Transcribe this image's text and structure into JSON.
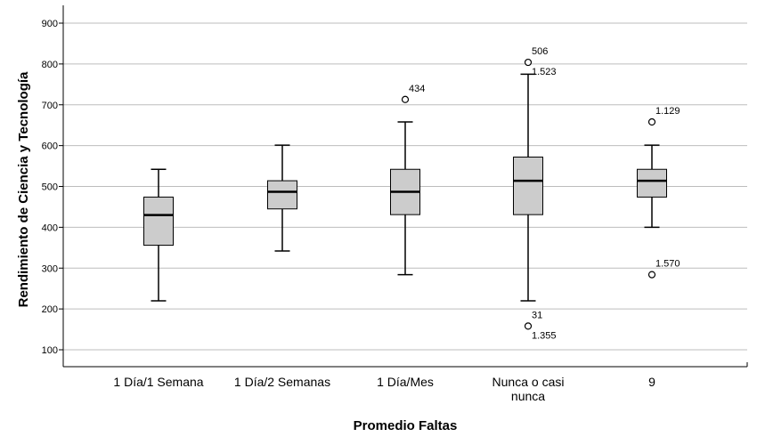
{
  "chart_data": {
    "type": "boxplot",
    "xlabel": "Promedio Faltas",
    "ylabel": "Rendimiento de Ciencia y Tecnología",
    "ylim": [
      50,
      950
    ],
    "yticks": [
      100,
      200,
      300,
      400,
      500,
      600,
      700,
      800,
      900
    ],
    "grid": true,
    "box_color": "#cccccc",
    "categories": [
      {
        "label": [
          "1 Día/1 Semana"
        ],
        "whisker_low": 220,
        "q1": 356,
        "median": 430,
        "q3": 474,
        "whisker_high": 542,
        "outliers": []
      },
      {
        "label": [
          "1 Día/2 Semanas"
        ],
        "whisker_low": 342,
        "q1": 445,
        "median": 487,
        "q3": 514,
        "whisker_high": 601,
        "outliers": []
      },
      {
        "label": [
          "1 Día/Mes"
        ],
        "whisker_low": 284,
        "q1": 431,
        "median": 487,
        "q3": 542,
        "whisker_high": 658,
        "outliers": [
          {
            "value": 713,
            "labels": [
              "434"
            ]
          }
        ]
      },
      {
        "label": [
          "Nunca o casi",
          "nunca"
        ],
        "whisker_low": 220,
        "q1": 431,
        "median": 514,
        "q3": 572,
        "whisker_high": 775,
        "outliers": [
          {
            "value": 804,
            "labels": [
              "506",
              "1.523"
            ]
          },
          {
            "value": 158,
            "labels": [
              "31",
              "1.355"
            ]
          }
        ]
      },
      {
        "label": [
          "9"
        ],
        "whisker_low": 400,
        "q1": 474,
        "median": 514,
        "q3": 542,
        "whisker_high": 601,
        "outliers": [
          {
            "value": 658,
            "labels": [
              "1.129"
            ]
          },
          {
            "value": 284,
            "labels": [
              "1.570"
            ]
          }
        ]
      }
    ]
  }
}
